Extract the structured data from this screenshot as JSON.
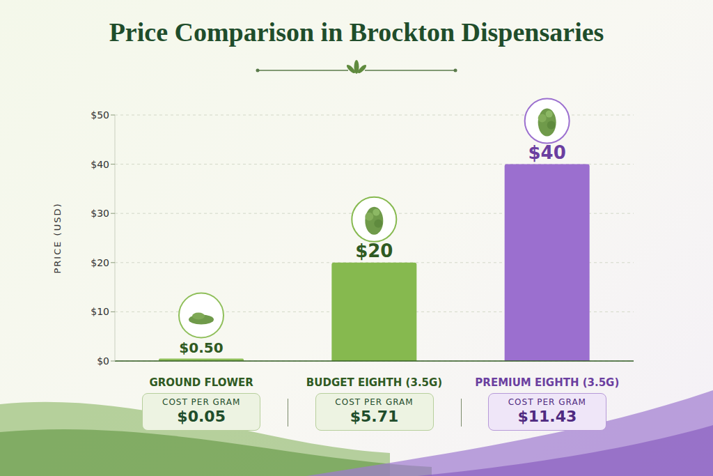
{
  "chart_data": {
    "type": "bar",
    "title": "Price Comparison in Brockton Dispensaries",
    "y_label": "PRICE (USD)",
    "categories": [
      "GROUND FLOWER",
      "BUDGET EIGHTH (3.5G)",
      "PREMIUM EIGHTH (3.5G)"
    ],
    "values": [
      0.5,
      20,
      40
    ],
    "value_labels": [
      "$0.50",
      "$20",
      "$40"
    ],
    "colors": [
      "#8fbf5a",
      "#86b94f",
      "#9b6fcf"
    ],
    "ylim": [
      0,
      50
    ],
    "yticks": [
      {
        "value": 0,
        "label": "$0"
      },
      {
        "value": 10,
        "label": "$10"
      },
      {
        "value": 20,
        "label": "$20"
      },
      {
        "value": 30,
        "label": "$30"
      },
      {
        "value": 40,
        "label": "$40"
      },
      {
        "value": 50,
        "label": "$50"
      }
    ],
    "grid": true,
    "data_labels": true,
    "cost_per_gram_title": "COST PER GRAM",
    "cost_per_gram": [
      "$0.05",
      "$5.71",
      "$11.43"
    ]
  }
}
